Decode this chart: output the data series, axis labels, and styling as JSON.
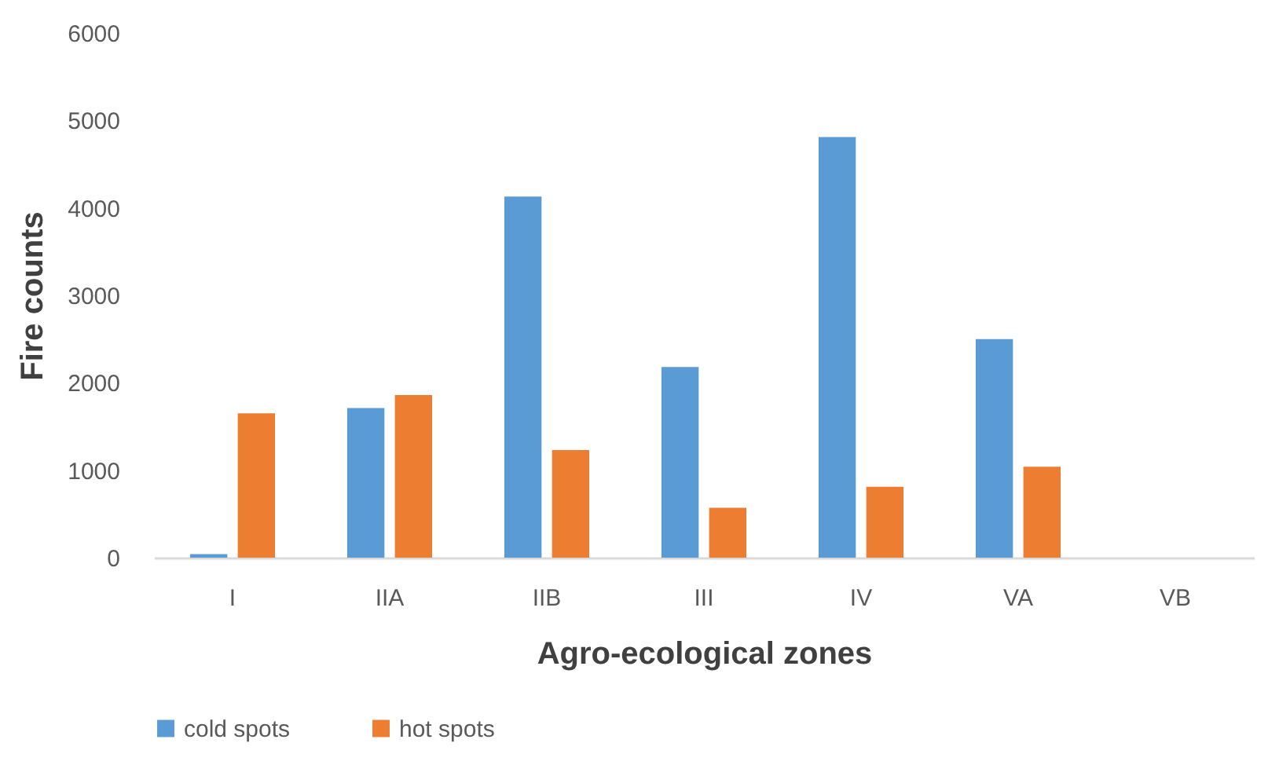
{
  "chart_data": {
    "type": "bar",
    "xlabel": "Agro-ecological zones",
    "ylabel": "Fire counts",
    "categories": [
      "I",
      "IIA",
      "IIB",
      "III",
      "IV",
      "VA",
      "VB"
    ],
    "series": [
      {
        "name": "cold spots",
        "color": "#5b9bd5",
        "values": [
          40,
          1710,
          4130,
          2180,
          4810,
          2500,
          null
        ]
      },
      {
        "name": "hot spots",
        "color": "#ed7d31",
        "values": [
          1650,
          1860,
          1230,
          570,
          810,
          1040,
          null
        ]
      }
    ],
    "ylim": [
      0,
      6000
    ],
    "yticks": [
      0,
      1000,
      2000,
      3000,
      4000,
      5000,
      6000
    ],
    "grid": false,
    "legend": "bottom"
  }
}
